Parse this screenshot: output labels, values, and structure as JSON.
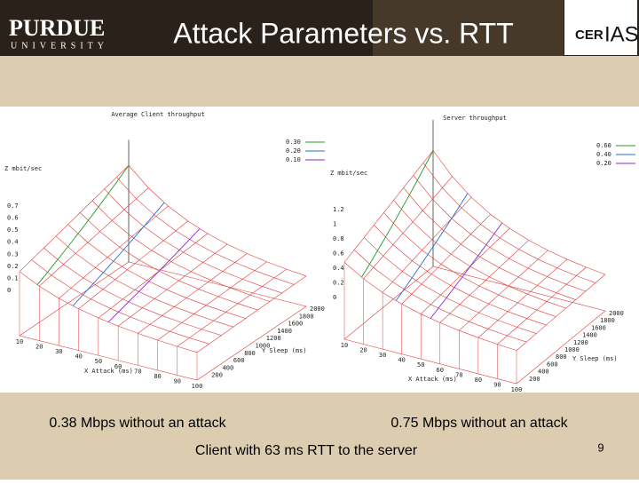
{
  "header": {
    "logo_left": {
      "name": "PURDUE",
      "sub": "UNIVERSITY"
    },
    "title": "Attack Parameters vs. RTT",
    "logo_right": {
      "part1": "CER",
      "part2": "IAS"
    }
  },
  "plots": [
    {
      "title": "Average Client throughput",
      "z_label": "Z mbit/sec",
      "legend": [
        "0.30",
        "0.20",
        "0.10"
      ],
      "z_ticks": [
        "0.7",
        "0.6",
        "0.5",
        "0.4",
        "0.3",
        "0.2",
        "0.1",
        "0"
      ],
      "x_label": "X Attack (ms)",
      "x_ticks": [
        "10",
        "20",
        "30",
        "40",
        "50",
        "60",
        "70",
        "80",
        "90",
        "100"
      ],
      "y_label": "Y Sleep (ms)",
      "y_ticks": [
        "200",
        "400",
        "600",
        "800",
        "1000",
        "1200",
        "1400",
        "1600",
        "1800",
        "2000"
      ]
    },
    {
      "title": "Server throughput",
      "z_label": "Z mbit/sec",
      "legend": [
        "0.60",
        "0.40",
        "0.20"
      ],
      "z_ticks": [
        "1.2",
        "1",
        "0.8",
        "0.6",
        "0.4",
        "0.2",
        "0"
      ],
      "x_label": "X Attack (ms)",
      "x_ticks": [
        "10",
        "20",
        "30",
        "40",
        "50",
        "60",
        "70",
        "80",
        "90",
        "100"
      ],
      "y_label": "Y Sleep (ms)",
      "y_ticks": [
        "200",
        "400",
        "600",
        "800",
        "1000",
        "1200",
        "1400",
        "1600",
        "1800",
        "2000"
      ]
    }
  ],
  "captions": {
    "left": "0.38 Mbps without an attack",
    "right": "0.75 Mbps without an attack",
    "bottom": "Client with 63 ms RTT to the server"
  },
  "page_number": "9"
}
